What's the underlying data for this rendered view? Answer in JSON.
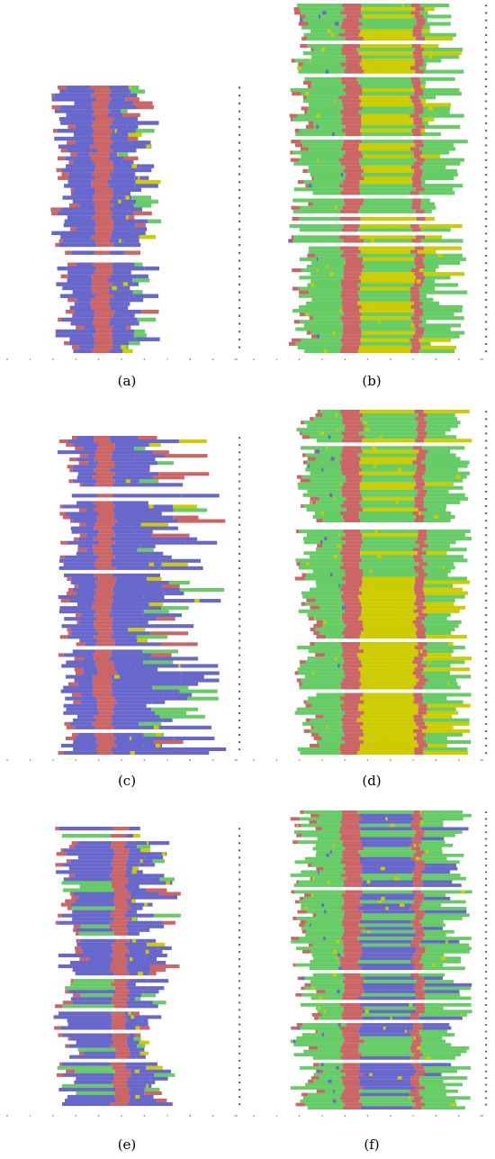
{
  "chart_data": [
    {
      "type": "bar",
      "panel": "(a)",
      "caption": "(a)",
      "x_ticks": [
        "0",
        "1",
        "2",
        "3",
        "4",
        "5",
        "6",
        "7",
        "8",
        "9",
        "10"
      ],
      "series": [
        {
          "name": "",
          "color": "#6868cc"
        },
        {
          "name": "",
          "color": "#cc6666"
        },
        {
          "name": "",
          "color": "#66cc66"
        },
        {
          "name": "",
          "color": "#cccc00"
        }
      ],
      "rows": 68,
      "x_span": [
        0,
        10
      ],
      "left_range": [
        1.9,
        3.0
      ],
      "right_range": [
        5.2,
        6.8
      ],
      "core_center": 4.15,
      "core_width": 0.75,
      "pattern": "blue",
      "seed": 11
    },
    {
      "type": "bar",
      "panel": "(b)",
      "caption": "(b)",
      "x_ticks": [
        "0",
        "1",
        "2",
        "3",
        "4",
        "5",
        "6",
        "7",
        "8",
        "9",
        "10"
      ],
      "series": [
        {
          "name": "",
          "color": "#6868cc"
        },
        {
          "name": "",
          "color": "#cc6666"
        },
        {
          "name": "",
          "color": "#66cc66"
        },
        {
          "name": "",
          "color": "#cccc00"
        }
      ],
      "rows": 95,
      "x_span": [
        0,
        10
      ],
      "left_range": [
        1.5,
        2.6
      ],
      "right_range": [
        7.5,
        9.4
      ],
      "core_center": 4.3,
      "core_width": 0.8,
      "second_core": 7.2,
      "pattern": "green-yellow",
      "seed": 23
    },
    {
      "type": "bar",
      "panel": "(c)",
      "caption": "(c)",
      "x_ticks": [
        "0",
        "1",
        "2",
        "3",
        "4",
        "5",
        "6",
        "7",
        "8",
        "9",
        "10"
      ],
      "series": [
        {
          "name": "",
          "color": "#6868cc"
        },
        {
          "name": "",
          "color": "#cc6666"
        },
        {
          "name": "",
          "color": "#66cc66"
        },
        {
          "name": "",
          "color": "#cccc00"
        }
      ],
      "rows": 88,
      "x_span": [
        0,
        10
      ],
      "left_range": [
        2.2,
        3.2
      ],
      "right_range": [
        6.0,
        9.6
      ],
      "core_center": 4.25,
      "core_width": 0.75,
      "pattern": "blue",
      "seed": 37
    },
    {
      "type": "bar",
      "panel": "(d)",
      "caption": "(d)",
      "x_ticks": [
        "0",
        "1",
        "2",
        "3",
        "4",
        "5",
        "6",
        "7",
        "8",
        "9",
        "10"
      ],
      "series": [
        {
          "name": "",
          "color": "#6868cc"
        },
        {
          "name": "",
          "color": "#cc6666"
        },
        {
          "name": "",
          "color": "#66cc66"
        },
        {
          "name": "",
          "color": "#cccc00"
        }
      ],
      "rows": 95,
      "x_span": [
        0,
        10
      ],
      "left_range": [
        1.8,
        2.8
      ],
      "right_range": [
        8.4,
        9.6
      ],
      "core_center": 4.3,
      "core_width": 0.8,
      "second_core": 7.3,
      "pattern": "green-yellow-solid",
      "seed": 41
    },
    {
      "type": "bar",
      "panel": "(e)",
      "caption": "(e)",
      "x_ticks": [
        "0",
        "1",
        "2",
        "3",
        "4",
        "5",
        "6",
        "7",
        "8",
        "9",
        "10"
      ],
      "series": [
        {
          "name": "",
          "color": "#6868cc"
        },
        {
          "name": "",
          "color": "#cc6666"
        },
        {
          "name": "",
          "color": "#66cc66"
        },
        {
          "name": "",
          "color": "#cccc00"
        }
      ],
      "rows": 78,
      "x_span": [
        0,
        10
      ],
      "left_range": [
        2.0,
        3.2
      ],
      "right_range": [
        5.6,
        7.6
      ],
      "core_center": 4.95,
      "core_width": 0.65,
      "pattern": "blue-mix",
      "seed": 53
    },
    {
      "type": "bar",
      "panel": "(f)",
      "caption": "(f)",
      "x_ticks": [
        "0",
        "1",
        "2",
        "3",
        "4",
        "5",
        "6",
        "7",
        "8",
        "9",
        "10"
      ],
      "series": [
        {
          "name": "",
          "color": "#6868cc"
        },
        {
          "name": "",
          "color": "#cc6666"
        },
        {
          "name": "",
          "color": "#66cc66"
        },
        {
          "name": "",
          "color": "#cccc00"
        }
      ],
      "rows": 90,
      "x_span": [
        0,
        10
      ],
      "left_range": [
        1.6,
        2.8
      ],
      "right_range": [
        8.2,
        9.6
      ],
      "core_center": 4.3,
      "core_width": 0.8,
      "second_core": 7.2,
      "pattern": "green-blue",
      "seed": 67
    }
  ]
}
